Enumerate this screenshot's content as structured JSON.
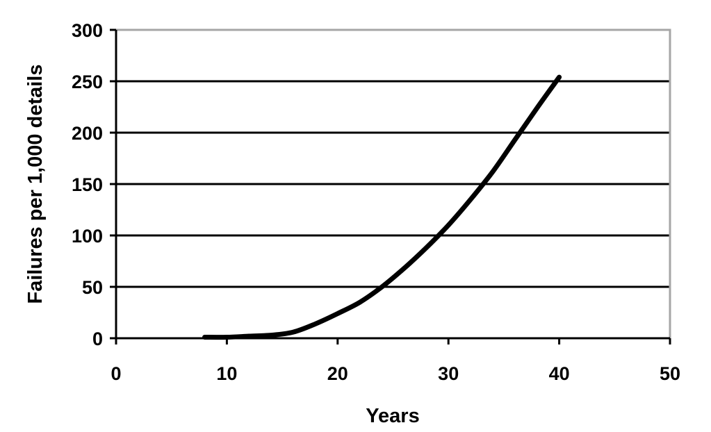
{
  "chart_data": {
    "type": "line",
    "title": "",
    "xlabel": "Years",
    "ylabel": "Failures per 1,000 details",
    "xlim": [
      0,
      50
    ],
    "ylim": [
      0,
      300
    ],
    "xticks": [
      0,
      10,
      20,
      30,
      40,
      50
    ],
    "yticks": [
      0,
      50,
      100,
      150,
      200,
      250,
      300
    ],
    "grid": "horizontal",
    "legend": "none",
    "series": [
      {
        "x": [
          8,
          10,
          12,
          14,
          16,
          18,
          20,
          22,
          24,
          26,
          28,
          30,
          32,
          34,
          36,
          38,
          40
        ],
        "y": [
          1,
          1,
          2,
          3,
          6,
          14,
          24,
          35,
          50,
          68,
          88,
          110,
          135,
          162,
          193,
          224,
          254
        ]
      }
    ],
    "colors": {
      "line": "#000000",
      "grid": "#000000",
      "frame": "#a6a6a6"
    }
  }
}
